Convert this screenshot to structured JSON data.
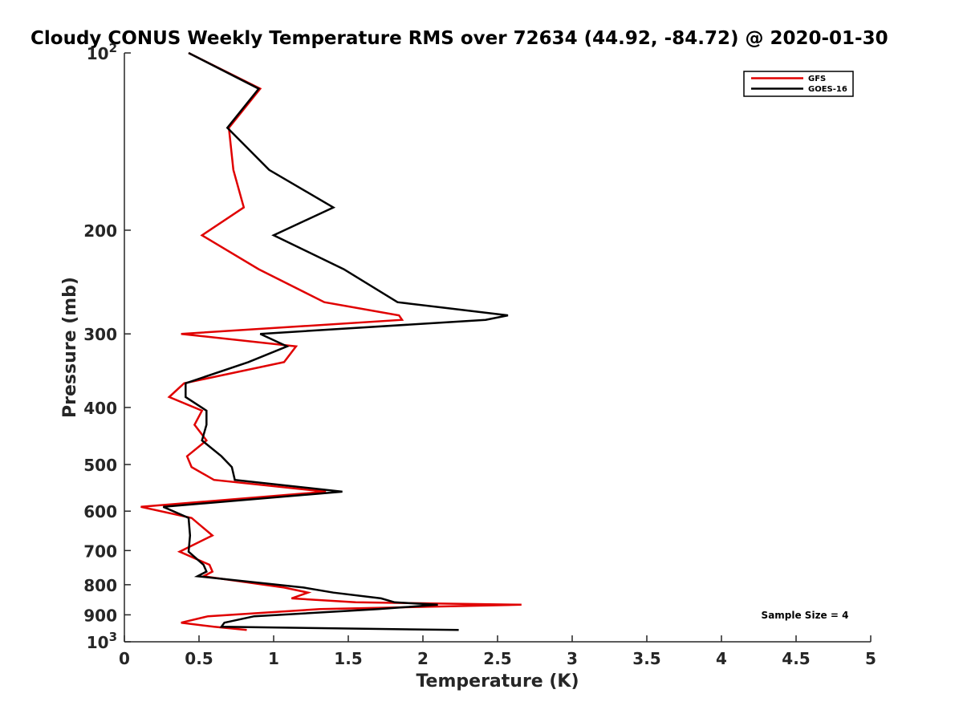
{
  "chart_data": {
    "type": "line",
    "title": "Cloudy CONUS Weekly Temperature RMS over 72634 (44.92, -84.72) @ 2020-01-30",
    "xlabel": "Temperature (K)",
    "ylabel": "Pressure (mb)",
    "xlim": [
      0,
      5
    ],
    "ylim": [
      100,
      1000
    ],
    "y_scale": "log",
    "y_reversed": true,
    "grid": false,
    "legend_position": "top-right",
    "x_ticks": [
      0,
      0.5,
      1,
      1.5,
      2,
      2.5,
      3,
      3.5,
      4,
      4.5,
      5
    ],
    "x_tick_labels": [
      "0",
      "0.5",
      "1",
      "1.5",
      "2",
      "2.5",
      "3",
      "3.5",
      "4",
      "4.5",
      "5"
    ],
    "y_ticks": [
      {
        "value": 100,
        "base": "10",
        "exp": "2"
      },
      {
        "value": 200,
        "label": "200"
      },
      {
        "value": 300,
        "label": "300"
      },
      {
        "value": 400,
        "label": "400"
      },
      {
        "value": 500,
        "label": "500"
      },
      {
        "value": 600,
        "label": "600"
      },
      {
        "value": 700,
        "label": "700"
      },
      {
        "value": 800,
        "label": "800"
      },
      {
        "value": 900,
        "label": "900"
      },
      {
        "value": 1000,
        "base": "10",
        "exp": "3"
      }
    ],
    "annotation": "Sample Size = 4",
    "series": [
      {
        "name": "GFS",
        "color": "#e00000",
        "points": [
          [
            0.43,
            100
          ],
          [
            0.91,
            115
          ],
          [
            0.7,
            134
          ],
          [
            0.73,
            158
          ],
          [
            0.8,
            183
          ],
          [
            0.52,
            204
          ],
          [
            0.9,
            233
          ],
          [
            1.34,
            265
          ],
          [
            1.84,
            279
          ],
          [
            1.86,
            284
          ],
          [
            0.38,
            300
          ],
          [
            1.15,
            315
          ],
          [
            1.07,
            335
          ],
          [
            0.4,
            364
          ],
          [
            0.3,
            384
          ],
          [
            0.52,
            405
          ],
          [
            0.47,
            428
          ],
          [
            0.55,
            455
          ],
          [
            0.42,
            484
          ],
          [
            0.45,
            505
          ],
          [
            0.6,
            531
          ],
          [
            1.35,
            556
          ],
          [
            0.11,
            590
          ],
          [
            0.45,
            616
          ],
          [
            0.59,
            660
          ],
          [
            0.37,
            703
          ],
          [
            0.57,
            740
          ],
          [
            0.59,
            760
          ],
          [
            0.53,
            774
          ],
          [
            1.07,
            809
          ],
          [
            1.23,
            825
          ],
          [
            1.12,
            844
          ],
          [
            1.55,
            857
          ],
          [
            2.66,
            865
          ],
          [
            1.31,
            880
          ],
          [
            0.56,
            905
          ],
          [
            0.38,
            928
          ],
          [
            0.6,
            943
          ],
          [
            0.82,
            955
          ]
        ]
      },
      {
        "name": "GOES-16",
        "color": "#000000",
        "points": [
          [
            0.43,
            100
          ],
          [
            0.9,
            115
          ],
          [
            0.69,
            134
          ],
          [
            0.97,
            158
          ],
          [
            1.4,
            183
          ],
          [
            1.0,
            204
          ],
          [
            1.47,
            233
          ],
          [
            1.83,
            265
          ],
          [
            2.57,
            279
          ],
          [
            2.42,
            284
          ],
          [
            0.91,
            300
          ],
          [
            1.09,
            315
          ],
          [
            0.83,
            335
          ],
          [
            0.41,
            364
          ],
          [
            0.41,
            384
          ],
          [
            0.55,
            405
          ],
          [
            0.55,
            428
          ],
          [
            0.52,
            455
          ],
          [
            0.65,
            484
          ],
          [
            0.72,
            505
          ],
          [
            0.74,
            531
          ],
          [
            1.46,
            556
          ],
          [
            0.26,
            590
          ],
          [
            0.43,
            616
          ],
          [
            0.44,
            660
          ],
          [
            0.43,
            703
          ],
          [
            0.53,
            740
          ],
          [
            0.55,
            760
          ],
          [
            0.49,
            774
          ],
          [
            1.2,
            809
          ],
          [
            1.4,
            825
          ],
          [
            1.72,
            844
          ],
          [
            1.81,
            857
          ],
          [
            2.1,
            865
          ],
          [
            1.7,
            880
          ],
          [
            0.87,
            905
          ],
          [
            0.67,
            928
          ],
          [
            0.65,
            943
          ],
          [
            2.24,
            955
          ]
        ]
      }
    ]
  }
}
